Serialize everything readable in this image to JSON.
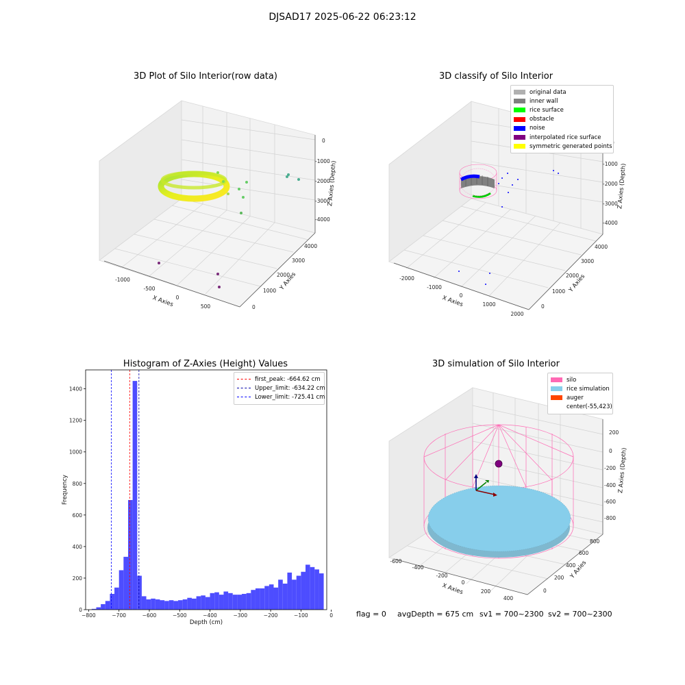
{
  "suptitle": "DJSAD17 2025-06-22 06:23:12",
  "status": {
    "flag": "flag = 0",
    "avg_depth": "avgDepth = 675 cm",
    "sv1": "sv1 = 700~2300",
    "sv2": "sv2 = 700~2300"
  },
  "colors": {
    "original_data": "#b0b0b0",
    "inner_wall": "#808080",
    "rice_surface": "#00ff00",
    "obstacle": "#ff0000",
    "noise": "#0000ff",
    "interpolated": "#800080",
    "symmetric": "#ffff00",
    "silo": "#ff69b4",
    "rice_sim": "#87ceeb",
    "auger": "#ff4500",
    "hist_bar": "#4d4dff",
    "first_peak": "#ff0000",
    "upper_limit": "#0000aa",
    "lower_limit": "#0000ff"
  },
  "chart_data": [
    {
      "type": "scatter",
      "title": "3D Plot of Silo Interior(row data)",
      "xlabel": "X Axies",
      "ylabel": "Y Axies",
      "zlabel": "Z Axies (Depth)",
      "x_ticks": [
        "-1000",
        "-500",
        "0",
        "500"
      ],
      "y_ticks": [
        "0",
        "1000",
        "2000",
        "3000",
        "4000"
      ],
      "z_ticks": [
        "0",
        "-1000",
        "-2000",
        "-3000",
        "-4000"
      ]
    },
    {
      "type": "scatter",
      "title": "3D classify of Silo Interior",
      "xlabel": "X Axies",
      "ylabel": "Y Axies",
      "zlabel": "Z Axies (Depth)",
      "x_ticks": [
        "-2000",
        "-1000",
        "0",
        "1000",
        "2000"
      ],
      "y_ticks": [
        "0",
        "1000",
        "2000",
        "3000",
        "4000"
      ],
      "z_ticks": [
        "0",
        "-1000",
        "-2000",
        "-3000",
        "-4000"
      ],
      "legend": [
        "original data",
        "inner wall",
        "rice surface",
        "obstacle",
        "noise",
        "interpolated rice surface",
        "symmetric generated points"
      ],
      "legend_placement": "top-right"
    },
    {
      "type": "bar",
      "title": "Histogram of Z-Axies (Height) Values",
      "xlabel": "Depth (cm)",
      "ylabel": "Frequency",
      "xlim": [
        -810,
        -15
      ],
      "ylim": [
        0,
        1520
      ],
      "x_ticks": [
        -800,
        -700,
        -600,
        -500,
        -400,
        -300,
        -200,
        -100,
        0
      ],
      "y_ticks": [
        0,
        200,
        400,
        600,
        800,
        1000,
        1200,
        1400
      ],
      "bin_start": -790,
      "bin_width": 15,
      "values": [
        5,
        15,
        35,
        55,
        100,
        140,
        250,
        335,
        695,
        1450,
        215,
        85,
        65,
        70,
        65,
        60,
        55,
        60,
        55,
        60,
        65,
        75,
        70,
        85,
        90,
        80,
        105,
        110,
        95,
        115,
        105,
        95,
        95,
        100,
        105,
        125,
        135,
        135,
        150,
        160,
        140,
        190,
        165,
        235,
        190,
        215,
        240,
        285,
        270,
        255,
        230
      ],
      "lines": [
        {
          "label": "first_peak: -664.62 cm",
          "x": -664.62
        },
        {
          "label": "Upper_limit: -634.22 cm",
          "x": -634.22
        },
        {
          "label": "Lower_limit: -725.41 cm",
          "x": -725.41
        }
      ],
      "legend_placement": "top-right"
    },
    {
      "type": "scatter",
      "title": "3D simulation of Silo Interior",
      "xlabel": "X Axies",
      "ylabel": "Y Axies",
      "zlabel": "Z Axies (Depth)",
      "x_ticks": [
        "-600",
        "-400",
        "-200",
        "0",
        "200",
        "400"
      ],
      "y_ticks": [
        "0",
        "200",
        "400",
        "600",
        "800"
      ],
      "z_ticks": [
        "200",
        "0",
        "-200",
        "-400",
        "-600",
        "-800"
      ],
      "legend": [
        "silo",
        "rice simulation",
        "auger",
        "center(-55,423)"
      ],
      "legend_placement": "top-right"
    }
  ]
}
